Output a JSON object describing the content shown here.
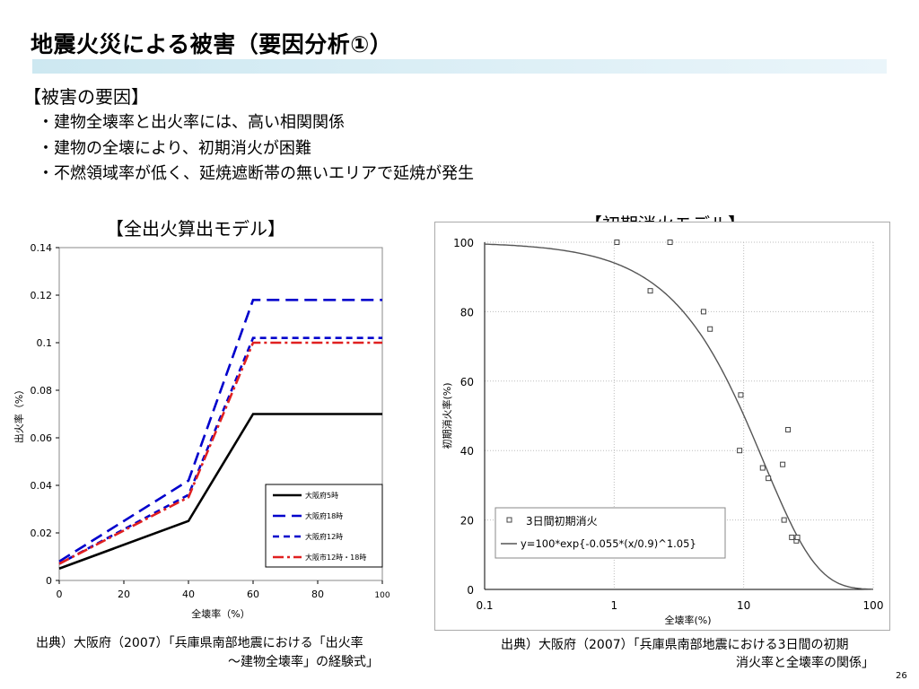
{
  "slide": {
    "title": "地震火災による被害（要因分析①）",
    "cause_heading": "【被害の要因】",
    "bullets": [
      "・建物全壊率と出火率には、高い相関関係",
      "・建物の全壊により、初期消火が困難",
      "・不燃領域率が低く、延焼遮断帯の無いエリアで延焼が発生"
    ],
    "page_number": "26"
  },
  "left_chart": {
    "heading": "【全出火算出モデル】",
    "source_line1": "出典）大阪府（2007）「兵庫県南部地震における「出火率",
    "source_line2": "～建物全壊率」の経験式」"
  },
  "right_chart": {
    "heading": "【初期消火モデル】",
    "source_line1": "出典）大阪府（2007）「兵庫県南部地震における3日間の初期",
    "source_line2": "消火率と全壊率の関係」"
  },
  "chart_data": [
    {
      "type": "line",
      "title": "【全出火算出モデル】",
      "xlabel": "全壊率（%）",
      "ylabel": "出火率（%）",
      "xlim": [
        0,
        100
      ],
      "ylim": [
        0,
        0.14
      ],
      "xticks": [
        "0",
        "20",
        "40",
        "60",
        "80",
        "100"
      ],
      "yticks": [
        "0",
        "0.02",
        "0.04",
        "0.06",
        "0.08",
        "0.1",
        "0.12",
        "0.14"
      ],
      "grid": false,
      "legend_position": "bottom-right",
      "series": [
        {
          "name": "大阪府5時",
          "color": "#000000",
          "dash": "solid",
          "x": [
            0,
            40,
            60,
            100
          ],
          "y": [
            0.005,
            0.025,
            0.07,
            0.07
          ]
        },
        {
          "name": "大阪府18時",
          "color": "#0000cc",
          "dash": "longdash",
          "x": [
            0,
            40,
            60,
            100
          ],
          "y": [
            0.008,
            0.042,
            0.118,
            0.118
          ]
        },
        {
          "name": "大阪府12時",
          "color": "#0000cc",
          "dash": "shortdash",
          "x": [
            0,
            40,
            60,
            100
          ],
          "y": [
            0.007,
            0.036,
            0.102,
            0.102
          ]
        },
        {
          "name": "大阪市12時・18時",
          "color": "#e02020",
          "dash": "dashdot",
          "x": [
            0,
            40,
            60,
            100
          ],
          "y": [
            0.007,
            0.035,
            0.1,
            0.1
          ]
        }
      ]
    },
    {
      "type": "scatter",
      "title": "【初期消火モデル】",
      "xlabel": "全壊率(%)",
      "ylabel": "初期消火率(%)",
      "xscale": "log",
      "xlim": [
        0.1,
        100
      ],
      "ylim": [
        0,
        100
      ],
      "xticks": [
        "0.1",
        "1",
        "10",
        "100"
      ],
      "yticks": [
        "0",
        "20",
        "40",
        "60",
        "80",
        "100"
      ],
      "grid": true,
      "legend_position": "bottom-left",
      "series": [
        {
          "name": "3日間初期消火",
          "marker": "open-square",
          "x": [
            1.05,
            2.7,
            1.9,
            4.9,
            5.5,
            9.5,
            9.3,
            14.0,
            15.5,
            20.0,
            22.0,
            23.5,
            25.5,
            26.0,
            20.5
          ],
          "y": [
            100,
            100,
            86,
            80,
            75,
            56,
            40,
            35,
            32,
            36,
            46,
            15,
            14,
            15,
            20
          ]
        },
        {
          "name": "y=100*exp{-0.055*(x/0.9)^1.05}",
          "type": "line",
          "color": "#555555",
          "formula": "y=100*exp(-0.055*(x/0.9)^1.05)"
        }
      ]
    }
  ]
}
